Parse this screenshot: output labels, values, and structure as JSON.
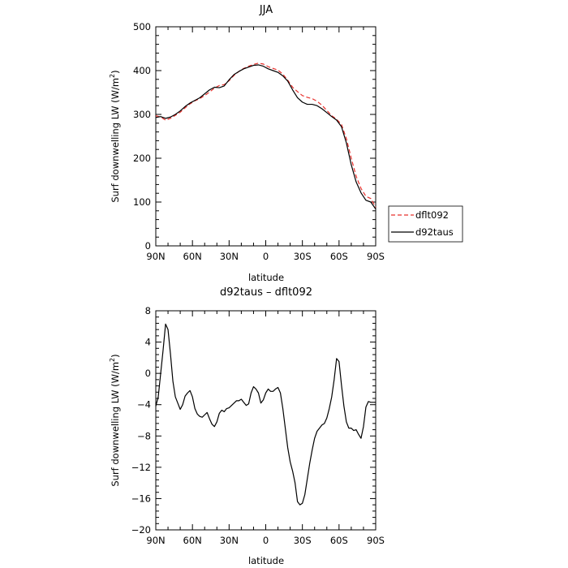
{
  "chart_data": [
    {
      "type": "line",
      "title": "JJA",
      "xlabel": "latitude",
      "ylabel": "Surf downwelling LW (W/m",
      "ylabel_sup": "2",
      "ylabel_end": ")",
      "xlim": [
        90,
        -90
      ],
      "ylim": [
        0,
        500
      ],
      "xticks": [
        90,
        60,
        30,
        0,
        -30,
        -60,
        -90
      ],
      "xtick_labels": [
        "90N",
        "60N",
        "30N",
        "0",
        "30S",
        "60S",
        "90S"
      ],
      "yticks": [
        0,
        100,
        200,
        300,
        400,
        500
      ],
      "ytick_labels": [
        "0",
        "100",
        "200",
        "300",
        "400",
        "500"
      ],
      "legend": {
        "placement": "right",
        "entries": [
          {
            "name": "dflt092",
            "color": "#e8302c",
            "dash": true
          },
          {
            "name": "d92taus",
            "color": "#000000",
            "dash": false
          }
        ]
      },
      "series": [
        {
          "name": "dflt092",
          "color": "#e8302c",
          "x": [
            90,
            86,
            82,
            78,
            74,
            70,
            66,
            62,
            58,
            54,
            50,
            46,
            42,
            38,
            34,
            30,
            26,
            22,
            18,
            14,
            10,
            6,
            2,
            -2,
            -6,
            -10,
            -14,
            -18,
            -22,
            -26,
            -30,
            -34,
            -38,
            -42,
            -46,
            -50,
            -54,
            -58,
            -62,
            -66,
            -70,
            -74,
            -78,
            -82,
            -86,
            -90
          ],
          "y": [
            297,
            294,
            287,
            291,
            298,
            305,
            315,
            324,
            331,
            336,
            343,
            351,
            360,
            366,
            368,
            377,
            389,
            398,
            405,
            410,
            414,
            417,
            415,
            409,
            405,
            401,
            392,
            378,
            362,
            352,
            343,
            339,
            336,
            330,
            321,
            309,
            297,
            289,
            277,
            245,
            200,
            159,
            131,
            113,
            108,
            88
          ]
        },
        {
          "name": "d92taus",
          "color": "#000000",
          "x": [
            90,
            86,
            82,
            78,
            74,
            70,
            66,
            62,
            58,
            54,
            50,
            46,
            42,
            38,
            34,
            30,
            26,
            22,
            18,
            14,
            10,
            6,
            2,
            -2,
            -6,
            -10,
            -14,
            -18,
            -22,
            -26,
            -30,
            -34,
            -38,
            -42,
            -46,
            -50,
            -54,
            -58,
            -62,
            -66,
            -70,
            -74,
            -78,
            -82,
            -86,
            -90
          ],
          "y": [
            293,
            295,
            291,
            294,
            300,
            308,
            318,
            326,
            332,
            338,
            347,
            356,
            362,
            361,
            365,
            379,
            391,
            398,
            404,
            408,
            412,
            413,
            410,
            404,
            400,
            396,
            388,
            376,
            356,
            338,
            328,
            323,
            323,
            320,
            313,
            304,
            295,
            287,
            272,
            235,
            185,
            146,
            121,
            104,
            100,
            84
          ]
        }
      ]
    },
    {
      "type": "line",
      "title": "d92taus – dflt092",
      "xlabel": "latitude",
      "ylabel": "Surf downwelling LW (W/m",
      "ylabel_sup": "2",
      "ylabel_end": ")",
      "xlim": [
        90,
        -90
      ],
      "ylim": [
        -20,
        8
      ],
      "xticks": [
        90,
        60,
        30,
        0,
        -30,
        -60,
        -90
      ],
      "xtick_labels": [
        "90N",
        "60N",
        "30N",
        "0",
        "30S",
        "60S",
        "90S"
      ],
      "yticks": [
        -20,
        -16,
        -12,
        -8,
        -4,
        0,
        4,
        8
      ],
      "ytick_labels": [
        "−20",
        "−16",
        "−12",
        "−8",
        "−4",
        "0",
        "4",
        "8"
      ],
      "series": [
        {
          "name": "",
          "color": "#000000",
          "x": [
            90,
            88,
            86,
            84,
            82,
            80,
            78,
            76,
            74,
            72,
            70,
            68,
            66,
            64,
            62,
            60,
            58,
            56,
            54,
            52,
            50,
            48,
            46,
            44,
            42,
            40,
            38,
            36,
            34,
            32,
            30,
            28,
            26,
            24,
            22,
            20,
            18,
            16,
            14,
            12,
            10,
            8,
            6,
            4,
            2,
            0,
            -2,
            -4,
            -6,
            -8,
            -10,
            -12,
            -14,
            -16,
            -18,
            -20,
            -22,
            -24,
            -26,
            -28,
            -30,
            -32,
            -34,
            -36,
            -38,
            -40,
            -42,
            -44,
            -46,
            -48,
            -50,
            -52,
            -54,
            -56,
            -58,
            -60,
            -62,
            -64,
            -66,
            -68,
            -70,
            -72,
            -74,
            -76,
            -78,
            -80,
            -82,
            -84,
            -86,
            -88,
            -90
          ],
          "y": [
            -4.2,
            -3,
            0,
            3,
            6.3,
            5.6,
            2.5,
            -1,
            -3,
            -3.8,
            -4.6,
            -4,
            -2.9,
            -2.5,
            -2.2,
            -3,
            -4.5,
            -5.2,
            -5.5,
            -5.6,
            -5.3,
            -5,
            -5.8,
            -6.5,
            -6.8,
            -6.2,
            -5.1,
            -4.7,
            -4.9,
            -4.5,
            -4.4,
            -4.1,
            -3.8,
            -3.5,
            -3.5,
            -3.3,
            -3.7,
            -4.1,
            -3.9,
            -2.5,
            -1.7,
            -2,
            -2.5,
            -3.8,
            -3.4,
            -2.5,
            -2,
            -2.3,
            -2.3,
            -2,
            -1.8,
            -2.5,
            -4.5,
            -7,
            -9.5,
            -11.3,
            -12.5,
            -14,
            -16.4,
            -16.8,
            -16.6,
            -15.5,
            -13.5,
            -11.5,
            -9.8,
            -8.3,
            -7.4,
            -7,
            -6.6,
            -6.4,
            -5.7,
            -4.5,
            -3,
            -0.8,
            1.9,
            1.5,
            -1.5,
            -4.2,
            -6.2,
            -7,
            -7,
            -7.3,
            -7.2,
            -7.8,
            -8.3,
            -6.8,
            -4.3,
            -3.6,
            -3.7,
            -3.7,
            -3.7
          ]
        }
      ]
    }
  ]
}
